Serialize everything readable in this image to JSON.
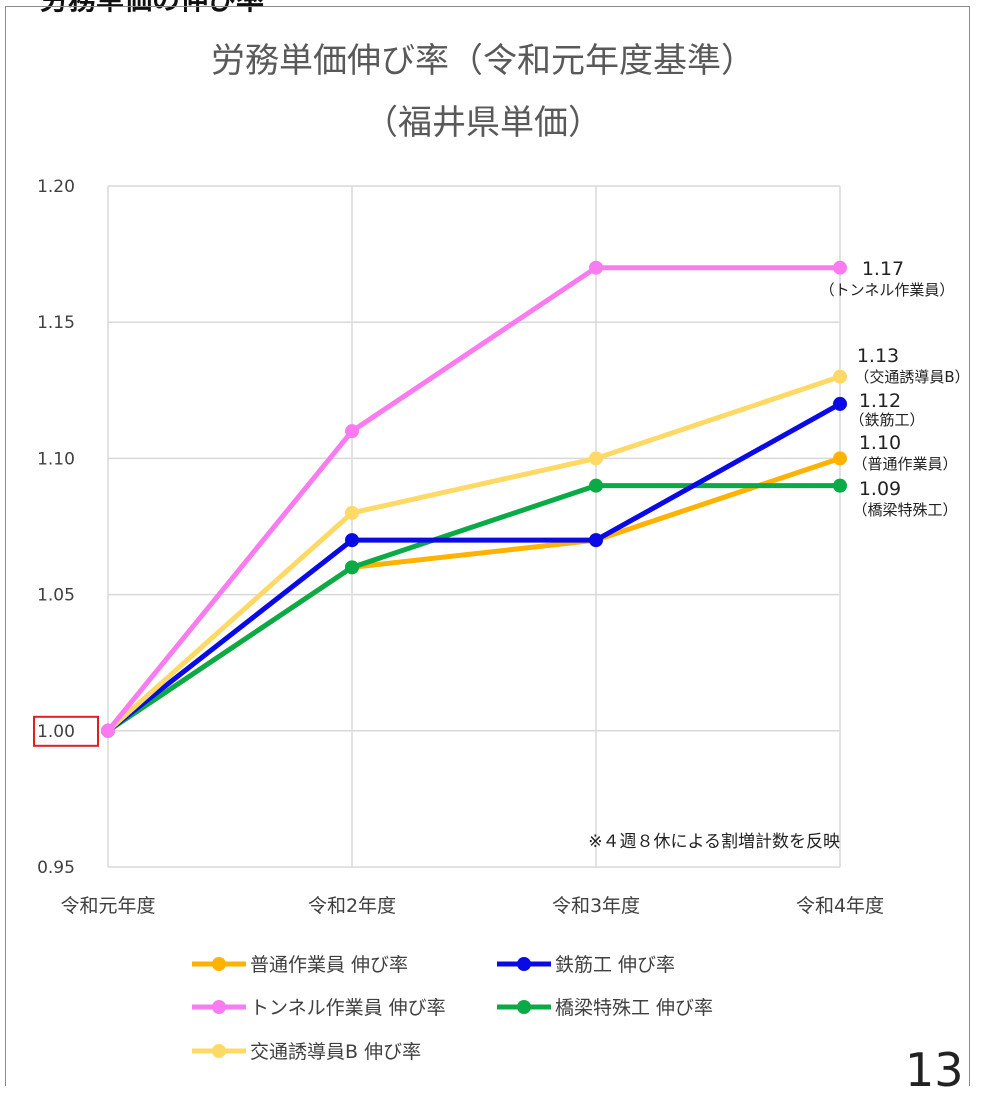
{
  "header": {
    "partial_title": "労務単価の伸び率"
  },
  "page_number": "13",
  "chart_data": {
    "type": "line",
    "title": "労務単価伸び率（令和元年度基準）",
    "subtitle": "（福井県単価）",
    "categories": [
      "令和元年度",
      "令和2年度",
      "令和3年度",
      "令和4年度"
    ],
    "ylim": [
      0.95,
      1.2
    ],
    "yticks": [
      "1.20",
      "1.15",
      "1.10",
      "1.05",
      "1.00",
      "0.95"
    ],
    "grid": true,
    "highlight_tick": "1.00",
    "highlight_color": "#e02020",
    "legend_position": "bottom",
    "note": "※４週８休による割増計数を反映",
    "series": [
      {
        "name": "普通作業員 伸び率",
        "color": "#ffb300",
        "values": [
          1.0,
          1.06,
          1.07,
          1.1
        ],
        "end_value": "1.10",
        "end_label": "（普通作業員）"
      },
      {
        "name": "鉄筋工 伸び率",
        "color": "#0a0ae6",
        "values": [
          1.0,
          1.07,
          1.07,
          1.12
        ],
        "end_value": "1.12",
        "end_label": "（鉄筋工）"
      },
      {
        "name": "トンネル作業員 伸び率",
        "color": "#f87cf0",
        "values": [
          1.0,
          1.11,
          1.17,
          1.17
        ],
        "end_value": "1.17",
        "end_label": "（トンネル作業員）"
      },
      {
        "name": "橋梁特殊工 伸び率",
        "color": "#0aaa46",
        "values": [
          1.0,
          1.06,
          1.09,
          1.09
        ],
        "end_value": "1.09",
        "end_label": "（橋梁特殊工）"
      },
      {
        "name": "交通誘導員B 伸び率",
        "color": "#ffd966",
        "values": [
          1.0,
          1.08,
          1.1,
          1.13
        ],
        "end_value": "1.13",
        "end_label": "（交通誘導員B）"
      }
    ]
  }
}
